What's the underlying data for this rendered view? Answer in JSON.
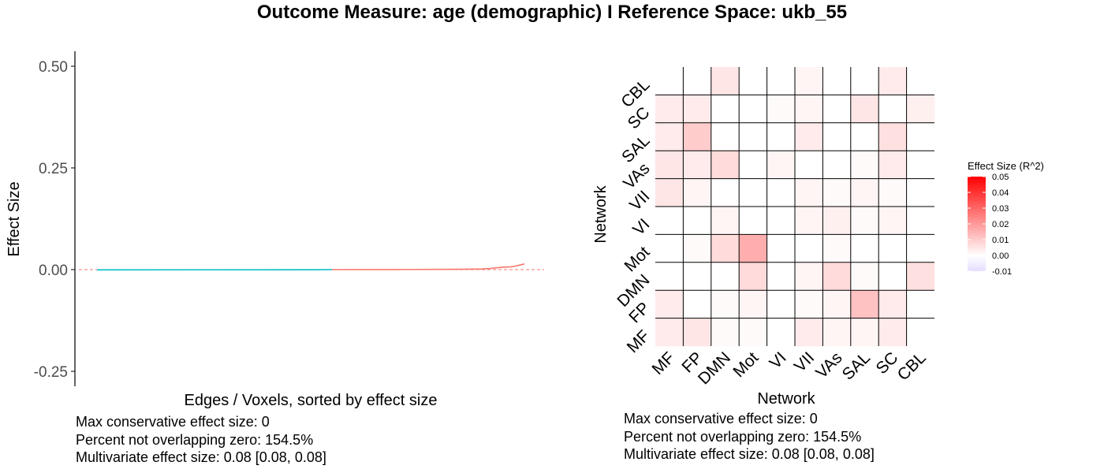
{
  "title": "Outcome Measure: age (demographic)   I  Reference Space: ukb_55",
  "chart_data": [
    {
      "type": "line",
      "title": "",
      "xlabel": "Edges / Voxels, sorted by effect size",
      "ylabel": "Effect Size",
      "ylim": [
        -0.28,
        0.53
      ],
      "yticks": [
        "0.50",
        "0.25",
        "0.00",
        "-0.25"
      ],
      "ytick_values": [
        0.5,
        0.25,
        0.0,
        -0.25
      ],
      "reference_line": 0.0,
      "colors": {
        "negative": "#00BFC4",
        "positive": "#F8766D",
        "reference": "#F8766D"
      },
      "series": [
        {
          "x": [
            0,
            0.5,
            0.55
          ],
          "values": [
            -0.0005,
            -0.0003,
            0.0
          ]
        },
        {
          "x": [
            0.55,
            0.7,
            0.85,
            0.9,
            0.92,
            0.95,
            0.97,
            0.98,
            1.0
          ],
          "values": [
            0.0,
            0.0002,
            0.0008,
            0.0015,
            0.003,
            0.006,
            0.007,
            0.009,
            0.014
          ]
        }
      ],
      "grid": false,
      "stats": [
        "Max conservative effect size: 0",
        "Percent not overlapping zero: 154.5%",
        "Multivariate effect size: 0.08 [0.08, 0.08]"
      ]
    },
    {
      "type": "heatmap",
      "title": "",
      "xlabel": "Network",
      "ylabel": "Network",
      "x_categories": [
        "MF",
        "FP",
        "DMN",
        "Mot",
        "VI",
        "VII",
        "VAs",
        "SAL",
        "SC",
        "CBL"
      ],
      "y_categories": [
        "MF",
        "FP",
        "DMN",
        "Mot",
        "VI",
        "VII",
        "VAs",
        "SAL",
        "SC",
        "CBL"
      ],
      "values": [
        [
          0.004,
          0.005,
          0.001,
          0.001,
          0.0,
          0.004,
          0.002,
          0.002,
          0.004,
          0.0
        ],
        [
          0.004,
          0.0,
          0.001,
          0.002,
          0.0,
          0.001,
          0.002,
          0.012,
          0.004,
          0.0
        ],
        [
          0.0,
          0.0,
          0.0,
          0.007,
          0.0,
          0.002,
          0.007,
          0.001,
          0.0,
          0.006
        ],
        [
          0.0,
          0.001,
          0.007,
          0.016,
          0.0,
          0.0,
          0.001,
          0.0,
          0.0,
          0.0
        ],
        [
          0.0,
          0.0,
          0.002,
          0.0,
          0.0,
          0.002,
          0.003,
          0.001,
          0.002,
          0.0
        ],
        [
          0.005,
          0.002,
          0.0,
          0.0,
          0.0,
          0.002,
          0.001,
          0.002,
          0.001,
          0.0
        ],
        [
          0.005,
          0.004,
          0.007,
          0.0,
          0.002,
          0.0,
          0.0,
          0.001,
          0.004,
          0.0
        ],
        [
          0.004,
          0.01,
          0.0,
          0.0,
          0.0,
          0.004,
          0.0,
          0.0,
          0.006,
          0.0
        ],
        [
          0.004,
          0.004,
          0.0,
          0.0,
          0.001,
          0.002,
          0.0,
          0.005,
          0.0,
          0.003
        ],
        [
          0.0,
          0.0,
          0.005,
          0.0,
          0.0,
          0.002,
          0.0,
          0.0,
          0.004,
          0.0
        ]
      ],
      "legend": {
        "title": "Effect Size (R^2)",
        "ticks": [
          "0.05",
          "0.04",
          "0.03",
          "0.02",
          "0.01",
          "0.00",
          "-0.01"
        ],
        "tick_values": [
          0.05,
          0.04,
          0.03,
          0.02,
          0.01,
          0.0,
          -0.01
        ],
        "range": [
          -0.01,
          0.05
        ],
        "placement": "right",
        "low_color": "#E6DDFF",
        "mid_color": "#FFFFFF",
        "high_color": "#FF0000"
      },
      "grid": false,
      "stats": [
        "Max conservative effect size: 0",
        "Percent not overlapping zero: 154.5%",
        "Multivariate effect size: 0.08 [0.08, 0.08]"
      ]
    }
  ]
}
